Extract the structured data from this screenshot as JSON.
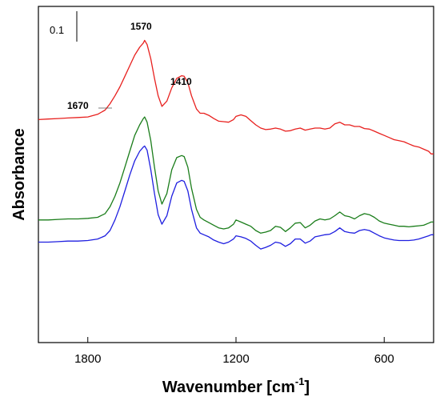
{
  "chart_data": {
    "type": "line",
    "xlabel": "Wavenumber [cm",
    "xlabel_superscript": "-1",
    "xlabel_suffix": "]",
    "ylabel": "Absorbance",
    "xlim": [
      2000,
      400
    ],
    "x_reversed": true,
    "xticks": [
      1800,
      1200,
      600
    ],
    "xtick_labels": [
      "1800",
      "1200",
      "600"
    ],
    "scale_bar_label": "0.1",
    "grid": false,
    "annotations": [
      {
        "text": "1570",
        "x": 1570
      },
      {
        "text": "1410",
        "x": 1410
      },
      {
        "text": "1670",
        "x": 1670
      }
    ],
    "series": [
      {
        "color": "#e8201e",
        "x": [
          2000,
          1960,
          1920,
          1880,
          1840,
          1800,
          1760,
          1730,
          1710,
          1690,
          1670,
          1650,
          1630,
          1610,
          1590,
          1575,
          1570,
          1560,
          1545,
          1530,
          1515,
          1500,
          1480,
          1460,
          1440,
          1420,
          1410,
          1395,
          1380,
          1360,
          1345,
          1330,
          1310,
          1290,
          1270,
          1250,
          1230,
          1210,
          1200,
          1180,
          1160,
          1140,
          1120,
          1100,
          1080,
          1060,
          1040,
          1020,
          1000,
          980,
          960,
          940,
          920,
          900,
          880,
          860,
          840,
          820,
          800,
          780,
          760,
          740,
          720,
          700,
          680,
          660,
          640,
          620,
          600,
          580,
          560,
          540,
          520,
          500,
          480,
          460,
          440,
          420,
          410,
          400
        ],
        "y": [
          0.6,
          0.61,
          0.62,
          0.63,
          0.64,
          0.65,
          0.7,
          0.78,
          0.9,
          1.05,
          1.22,
          1.42,
          1.62,
          1.82,
          1.97,
          2.05,
          2.1,
          2.02,
          1.75,
          1.38,
          1.05,
          0.85,
          0.95,
          1.2,
          1.38,
          1.43,
          1.42,
          1.3,
          1.05,
          0.8,
          0.72,
          0.72,
          0.68,
          0.62,
          0.57,
          0.56,
          0.55,
          0.6,
          0.66,
          0.69,
          0.66,
          0.58,
          0.5,
          0.44,
          0.41,
          0.42,
          0.44,
          0.42,
          0.38,
          0.39,
          0.42,
          0.44,
          0.4,
          0.42,
          0.44,
          0.44,
          0.42,
          0.44,
          0.52,
          0.55,
          0.5,
          0.5,
          0.47,
          0.47,
          0.43,
          0.42,
          0.38,
          0.34,
          0.3,
          0.26,
          0.22,
          0.2,
          0.18,
          0.14,
          0.1,
          0.08,
          0.04,
          0.0,
          -0.05,
          -0.05
        ]
      },
      {
        "color": "#1a7d1a",
        "x": [
          2000,
          1960,
          1920,
          1880,
          1840,
          1800,
          1760,
          1730,
          1710,
          1690,
          1670,
          1650,
          1630,
          1610,
          1590,
          1575,
          1570,
          1560,
          1545,
          1530,
          1515,
          1500,
          1480,
          1460,
          1440,
          1420,
          1410,
          1395,
          1380,
          1360,
          1345,
          1330,
          1310,
          1290,
          1270,
          1250,
          1230,
          1210,
          1200,
          1180,
          1160,
          1140,
          1120,
          1100,
          1080,
          1060,
          1040,
          1020,
          1000,
          980,
          960,
          940,
          920,
          900,
          880,
          860,
          840,
          820,
          800,
          780,
          760,
          740,
          720,
          700,
          680,
          660,
          640,
          620,
          600,
          580,
          560,
          540,
          520,
          500,
          480,
          460,
          440,
          420,
          410,
          400
        ],
        "y": [
          -1.3,
          -1.3,
          -1.29,
          -1.28,
          -1.28,
          -1.27,
          -1.25,
          -1.18,
          -1.05,
          -0.85,
          -0.6,
          -0.3,
          0.0,
          0.3,
          0.5,
          0.62,
          0.65,
          0.55,
          0.2,
          -0.3,
          -0.75,
          -1.0,
          -0.8,
          -0.35,
          -0.12,
          -0.08,
          -0.1,
          -0.3,
          -0.7,
          -1.1,
          -1.25,
          -1.3,
          -1.35,
          -1.4,
          -1.45,
          -1.47,
          -1.45,
          -1.38,
          -1.3,
          -1.34,
          -1.38,
          -1.42,
          -1.5,
          -1.55,
          -1.53,
          -1.5,
          -1.42,
          -1.44,
          -1.52,
          -1.45,
          -1.36,
          -1.35,
          -1.45,
          -1.4,
          -1.32,
          -1.28,
          -1.3,
          -1.28,
          -1.22,
          -1.15,
          -1.22,
          -1.24,
          -1.28,
          -1.22,
          -1.18,
          -1.2,
          -1.25,
          -1.32,
          -1.36,
          -1.38,
          -1.4,
          -1.42,
          -1.42,
          -1.43,
          -1.42,
          -1.41,
          -1.4,
          -1.36,
          -1.34,
          -1.34
        ]
      },
      {
        "color": "#1f1fe0",
        "x": [
          2000,
          1960,
          1920,
          1880,
          1840,
          1800,
          1760,
          1730,
          1710,
          1690,
          1670,
          1650,
          1630,
          1610,
          1590,
          1575,
          1570,
          1560,
          1545,
          1530,
          1515,
          1500,
          1480,
          1460,
          1440,
          1420,
          1410,
          1395,
          1380,
          1360,
          1345,
          1330,
          1310,
          1290,
          1270,
          1250,
          1230,
          1210,
          1200,
          1180,
          1160,
          1140,
          1120,
          1100,
          1080,
          1060,
          1040,
          1020,
          1000,
          980,
          960,
          940,
          920,
          900,
          880,
          860,
          840,
          820,
          800,
          780,
          760,
          740,
          720,
          700,
          680,
          660,
          640,
          620,
          600,
          580,
          560,
          540,
          520,
          500,
          480,
          460,
          440,
          420,
          410,
          400
        ],
        "y": [
          -1.72,
          -1.72,
          -1.71,
          -1.7,
          -1.7,
          -1.69,
          -1.66,
          -1.6,
          -1.5,
          -1.3,
          -1.05,
          -0.75,
          -0.45,
          -0.18,
          0.0,
          0.08,
          0.1,
          0.02,
          -0.35,
          -0.8,
          -1.2,
          -1.38,
          -1.22,
          -0.85,
          -0.6,
          -0.55,
          -0.57,
          -0.75,
          -1.1,
          -1.45,
          -1.55,
          -1.58,
          -1.62,
          -1.68,
          -1.72,
          -1.75,
          -1.72,
          -1.66,
          -1.6,
          -1.62,
          -1.65,
          -1.7,
          -1.78,
          -1.85,
          -1.82,
          -1.78,
          -1.72,
          -1.74,
          -1.8,
          -1.75,
          -1.66,
          -1.66,
          -1.74,
          -1.7,
          -1.62,
          -1.6,
          -1.58,
          -1.57,
          -1.52,
          -1.45,
          -1.52,
          -1.54,
          -1.55,
          -1.5,
          -1.48,
          -1.5,
          -1.55,
          -1.6,
          -1.64,
          -1.66,
          -1.68,
          -1.69,
          -1.69,
          -1.69,
          -1.68,
          -1.66,
          -1.63,
          -1.6,
          -1.58,
          -1.58
        ]
      }
    ]
  }
}
